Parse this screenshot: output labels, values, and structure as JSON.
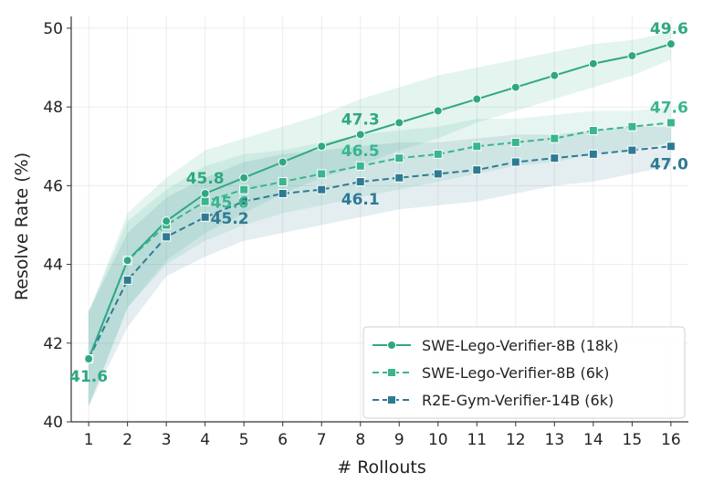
{
  "chart_data": {
    "type": "line",
    "title": "",
    "xlabel": "# Rollouts",
    "ylabel": "Resolve Rate (%)",
    "x": [
      1,
      2,
      3,
      4,
      5,
      6,
      7,
      8,
      9,
      10,
      11,
      12,
      13,
      14,
      15,
      16
    ],
    "xticks": [
      "1",
      "2",
      "3",
      "4",
      "5",
      "6",
      "7",
      "8",
      "9",
      "10",
      "11",
      "12",
      "13",
      "14",
      "15",
      "16"
    ],
    "yticks": [
      "40",
      "42",
      "44",
      "46",
      "48",
      "50"
    ],
    "xlim": [
      0.55,
      16.45
    ],
    "ylim": [
      40,
      50.3
    ],
    "grid": true,
    "legend_position": "bottom-right",
    "series": [
      {
        "name": "SWE-Lego-Verifier-8B (18k)",
        "color": "#2fa882",
        "style": "solid",
        "marker": "circle",
        "values": [
          41.6,
          44.1,
          45.1,
          45.8,
          46.2,
          46.6,
          47.0,
          47.3,
          47.6,
          47.9,
          48.2,
          48.5,
          48.8,
          49.1,
          49.3,
          49.6
        ],
        "band_low": [
          40.4,
          42.9,
          44.1,
          44.8,
          45.3,
          45.8,
          46.2,
          46.5,
          46.9,
          47.2,
          47.6,
          47.9,
          48.2,
          48.5,
          48.8,
          49.2
        ],
        "band_high": [
          42.8,
          45.3,
          46.2,
          46.9,
          47.2,
          47.5,
          47.8,
          48.2,
          48.5,
          48.8,
          49.0,
          49.2,
          49.4,
          49.6,
          49.7,
          49.9
        ]
      },
      {
        "name": "SWE-Lego-Verifier-8B (6k)",
        "color": "#3ab58f",
        "style": "dashed",
        "marker": "square",
        "values": [
          41.6,
          44.1,
          45.0,
          45.6,
          45.9,
          46.1,
          46.3,
          46.5,
          46.7,
          46.8,
          47.0,
          47.1,
          47.2,
          47.4,
          47.5,
          47.6
        ],
        "band_low": [
          40.4,
          42.9,
          44.0,
          44.6,
          45.0,
          45.3,
          45.5,
          45.7,
          45.9,
          46.1,
          46.3,
          46.5,
          46.6,
          46.8,
          46.9,
          47.1
        ],
        "band_high": [
          42.8,
          45.1,
          45.9,
          46.5,
          46.8,
          46.9,
          47.1,
          47.3,
          47.4,
          47.5,
          47.7,
          47.7,
          47.8,
          47.9,
          47.9,
          48.0
        ]
      },
      {
        "name": "R2E-Gym-Verifier-14B (6k)",
        "color": "#2e7a93",
        "style": "dashed",
        "marker": "square",
        "values": [
          41.6,
          43.6,
          44.7,
          45.2,
          45.6,
          45.8,
          45.9,
          46.1,
          46.2,
          46.3,
          46.4,
          46.6,
          46.7,
          46.8,
          46.9,
          47.0
        ],
        "band_low": [
          40.4,
          42.4,
          43.7,
          44.2,
          44.6,
          44.8,
          45.0,
          45.2,
          45.4,
          45.5,
          45.6,
          45.8,
          46.0,
          46.1,
          46.3,
          46.5
        ],
        "band_high": [
          42.8,
          44.8,
          45.7,
          46.2,
          46.6,
          46.8,
          46.9,
          47.0,
          47.1,
          47.1,
          47.2,
          47.3,
          47.3,
          47.4,
          47.5,
          47.5
        ]
      }
    ],
    "annotations": [
      {
        "text": "41.6",
        "x": 1,
        "y": 41.6,
        "color": "#2fa882",
        "place": "below"
      },
      {
        "text": "45.8",
        "x": 4,
        "y": 45.8,
        "color": "#2fa882",
        "place": "above"
      },
      {
        "text": "45.6",
        "x": 4,
        "y": 45.6,
        "color": "#3ab58f",
        "place": "right"
      },
      {
        "text": "45.2",
        "x": 4,
        "y": 45.2,
        "color": "#2e7a93",
        "place": "right"
      },
      {
        "text": "47.3",
        "x": 8,
        "y": 47.3,
        "color": "#2fa882",
        "place": "above"
      },
      {
        "text": "46.5",
        "x": 8,
        "y": 46.5,
        "color": "#3ab58f",
        "place": "above"
      },
      {
        "text": "46.1",
        "x": 8,
        "y": 46.1,
        "color": "#2e7a93",
        "place": "below"
      },
      {
        "text": "49.6",
        "x": 16,
        "y": 49.6,
        "color": "#2fa882",
        "place": "above"
      },
      {
        "text": "47.6",
        "x": 16,
        "y": 47.6,
        "color": "#3ab58f",
        "place": "above"
      },
      {
        "text": "47.0",
        "x": 16,
        "y": 47.0,
        "color": "#2e7a93",
        "place": "below"
      }
    ]
  }
}
